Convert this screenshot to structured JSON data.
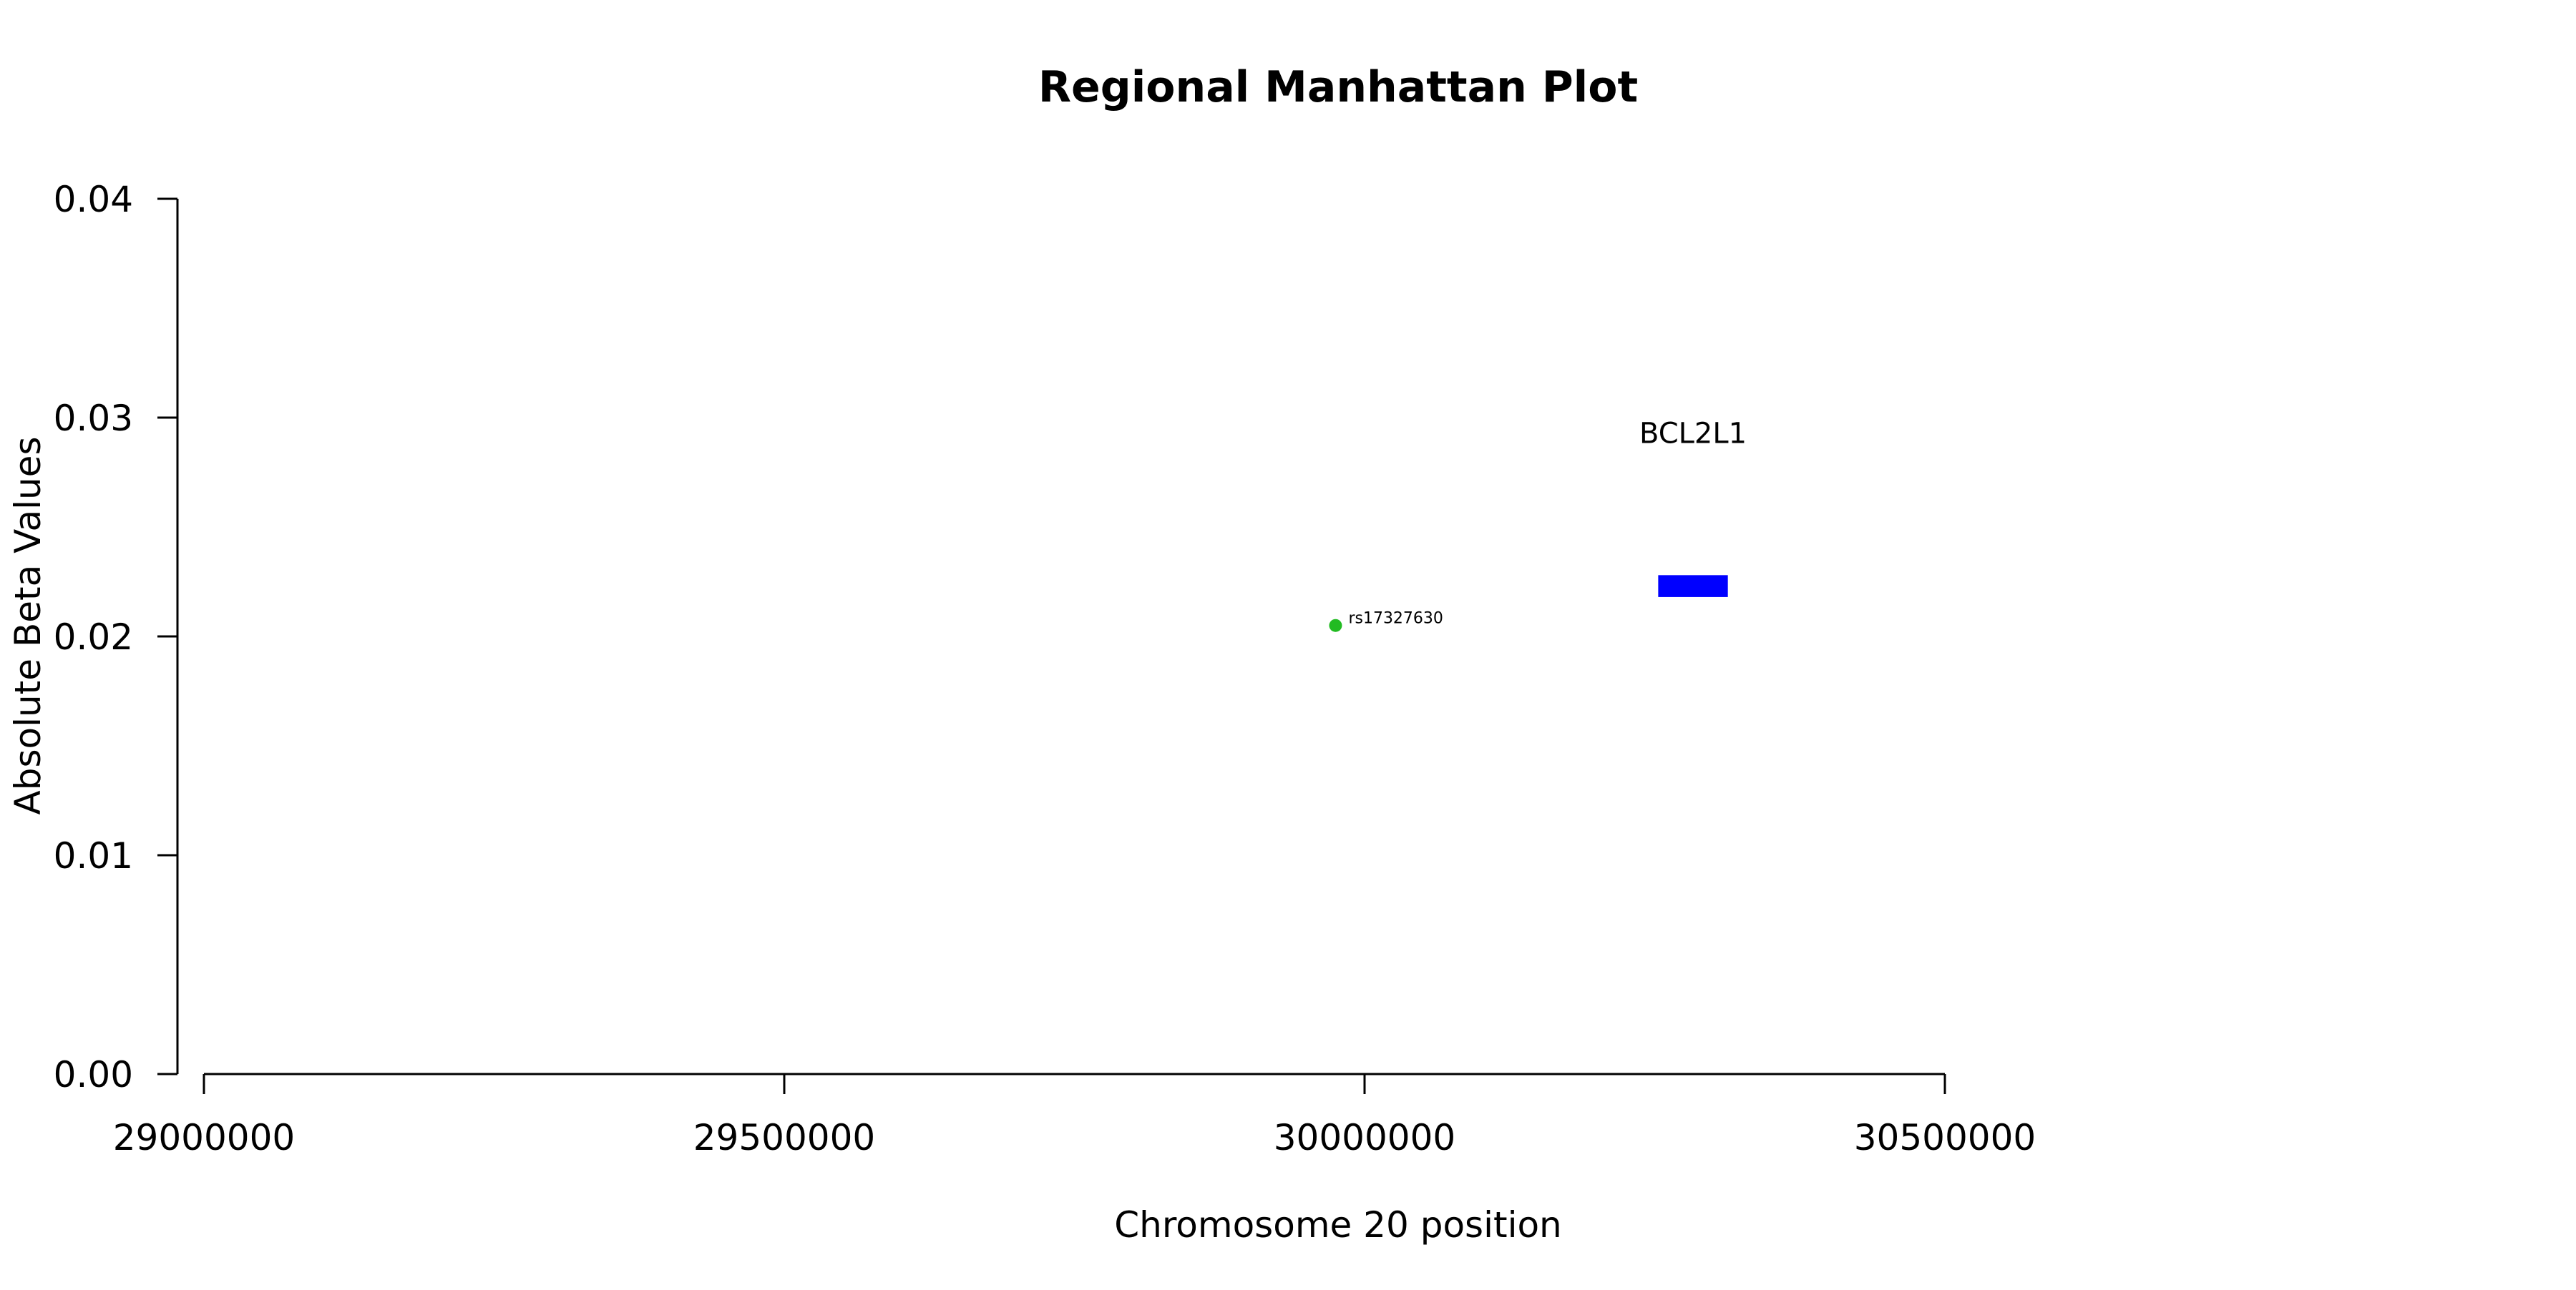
{
  "chart_data": {
    "type": "scatter",
    "title": "Regional Manhattan Plot",
    "xlabel": "Chromosome 20 position",
    "ylabel": "Absolute Beta Values",
    "xlim": [
      29000000,
      30500000
    ],
    "ylim": [
      0,
      0.04
    ],
    "x_ticks": [
      29000000,
      29500000,
      30000000,
      30500000
    ],
    "x_tick_labels": [
      "29000000",
      "29500000",
      "30000000",
      "30500000"
    ],
    "y_ticks": [
      0,
      0.01,
      0.02,
      0.03,
      0.04
    ],
    "y_tick_labels": [
      "0.00",
      "0.01",
      "0.02",
      "0.03",
      "0.04"
    ],
    "grid": false,
    "points": [
      {
        "x": 29975000,
        "y": 0.0205,
        "label": "rs17327630",
        "color": "#22bb22"
      }
    ],
    "genes": [
      {
        "name": "BCL2L1",
        "start": 30253000,
        "end": 30313000,
        "y_low": 0.0218,
        "y_high": 0.0228,
        "label_y": 0.0293,
        "color": "#0000ff"
      }
    ]
  }
}
